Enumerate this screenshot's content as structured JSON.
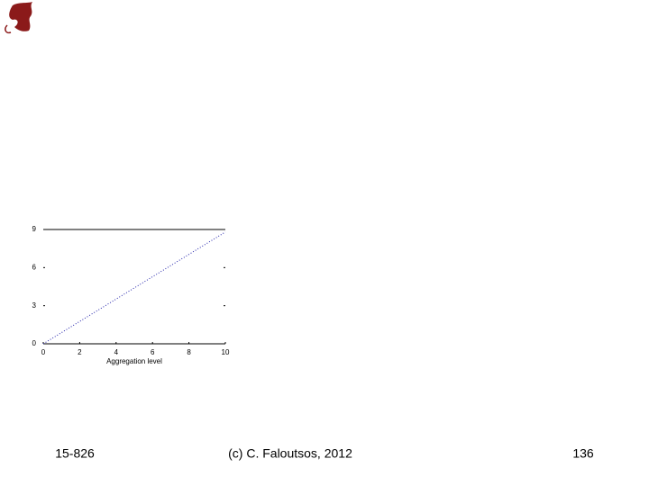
{
  "chart_data": {
    "type": "line",
    "x_label": "Aggregation level",
    "x": [
      0,
      1,
      2,
      3,
      4,
      5,
      6,
      7,
      8,
      9,
      10
    ],
    "series": [
      {
        "color": "#2222aa",
        "values": [
          0,
          0.88,
          1.76,
          2.64,
          3.52,
          4.4,
          5.28,
          6.16,
          7.04,
          7.92,
          8.8
        ]
      }
    ],
    "xlim": [
      0,
      10
    ],
    "xticks": [
      0,
      2,
      4,
      6,
      8,
      10
    ],
    "ylim": [
      0,
      9
    ],
    "yticks": [
      0,
      3,
      6,
      9
    ]
  },
  "footer": {
    "left": "15-826",
    "center": "(c) C. Faloutsos, 2012",
    "right": "136"
  }
}
